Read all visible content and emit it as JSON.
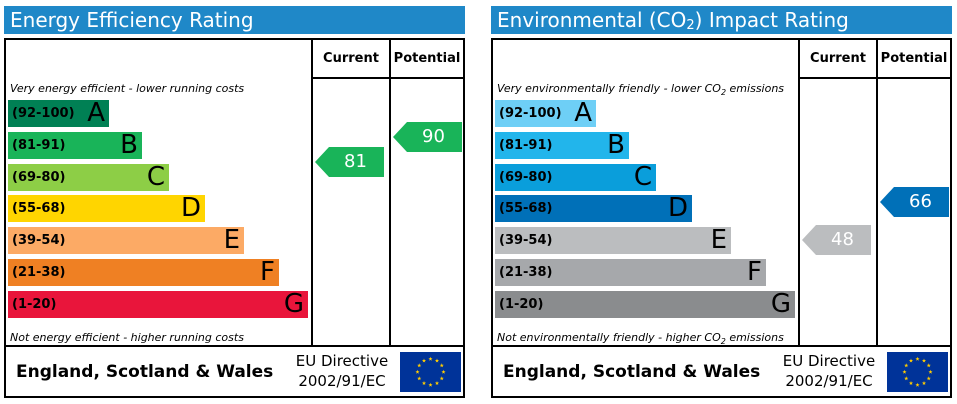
{
  "columns": {
    "current": "Current",
    "potential": "Potential"
  },
  "footer": {
    "region": "England, Scotland & Wales",
    "directive_line1": "EU Directive",
    "directive_line2": "2002/91/EC"
  },
  "panels": [
    {
      "title": "Energy Efficiency Rating",
      "top_note": "Very energy efficient - lower running costs",
      "bottom_note": "Not energy efficient - higher running costs",
      "bands": [
        {
          "range": "(92-100)",
          "letter": "A",
          "color": "#008054"
        },
        {
          "range": "(81-91)",
          "letter": "B",
          "color": "#19b459"
        },
        {
          "range": "(69-80)",
          "letter": "C",
          "color": "#8dce46"
        },
        {
          "range": "(55-68)",
          "letter": "D",
          "color": "#ffd500"
        },
        {
          "range": "(39-54)",
          "letter": "E",
          "color": "#fcaa65"
        },
        {
          "range": "(21-38)",
          "letter": "F",
          "color": "#ef8023"
        },
        {
          "range": "(1-20)",
          "letter": "G",
          "color": "#e9153b"
        }
      ],
      "current": {
        "value": "81",
        "color": "#19b459"
      },
      "potential": {
        "value": "90",
        "color": "#19b459"
      }
    },
    {
      "title_prefix": "Environmental (CO",
      "title_sub": "2",
      "title_suffix": ") Impact Rating",
      "top_note_prefix": "Very environmentally friendly - lower CO",
      "top_note_sub": "2",
      "top_note_suffix": " emissions",
      "bottom_note_prefix": "Not environmentally friendly - higher CO",
      "bottom_note_sub": "2",
      "bottom_note_suffix": " emissions",
      "bands": [
        {
          "range": "(92-100)",
          "letter": "A",
          "color": "#6ecff6"
        },
        {
          "range": "(81-91)",
          "letter": "B",
          "color": "#22b5eb"
        },
        {
          "range": "(69-80)",
          "letter": "C",
          "color": "#0a9edb"
        },
        {
          "range": "(55-68)",
          "letter": "D",
          "color": "#0070b8"
        },
        {
          "range": "(39-54)",
          "letter": "E",
          "color": "#bbbdbf"
        },
        {
          "range": "(21-38)",
          "letter": "F",
          "color": "#a6a8ab"
        },
        {
          "range": "(1-20)",
          "letter": "G",
          "color": "#8a8c8e"
        }
      ],
      "current": {
        "value": "48",
        "color": "#bbbdbf"
      },
      "potential": {
        "value": "66",
        "color": "#0070b8"
      }
    }
  ]
}
